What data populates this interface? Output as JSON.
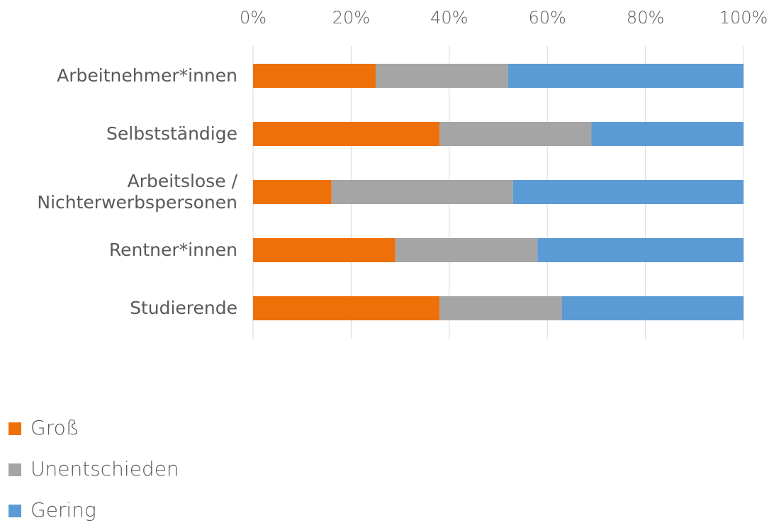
{
  "chart_data": {
    "type": "stacked_barh",
    "categories": [
      "Arbeitnehmer*innen",
      "Selbstständige",
      "Arbeitslose /\nNichterwerbspersonen",
      "Rentner*innen",
      "Studierende"
    ],
    "series": [
      {
        "name": "Groß",
        "color": "#ee7009",
        "values": [
          25,
          38,
          16,
          29,
          38
        ]
      },
      {
        "name": "Unentschieden",
        "color": "#a5a5a5",
        "values": [
          27,
          31,
          37,
          29,
          25
        ]
      },
      {
        "name": "Gering",
        "color": "#5b9bd5",
        "values": [
          48,
          31,
          47,
          42,
          37
        ]
      }
    ],
    "xlim": [
      0,
      100
    ],
    "xticks": [
      {
        "value": 0,
        "label": "0%"
      },
      {
        "value": 20,
        "label": "20%"
      },
      {
        "value": 40,
        "label": "40%"
      },
      {
        "value": 60,
        "label": "60%"
      },
      {
        "value": 80,
        "label": "80%"
      },
      {
        "value": 100,
        "label": "100%"
      }
    ],
    "grid": true,
    "legend": "bottom-left"
  }
}
